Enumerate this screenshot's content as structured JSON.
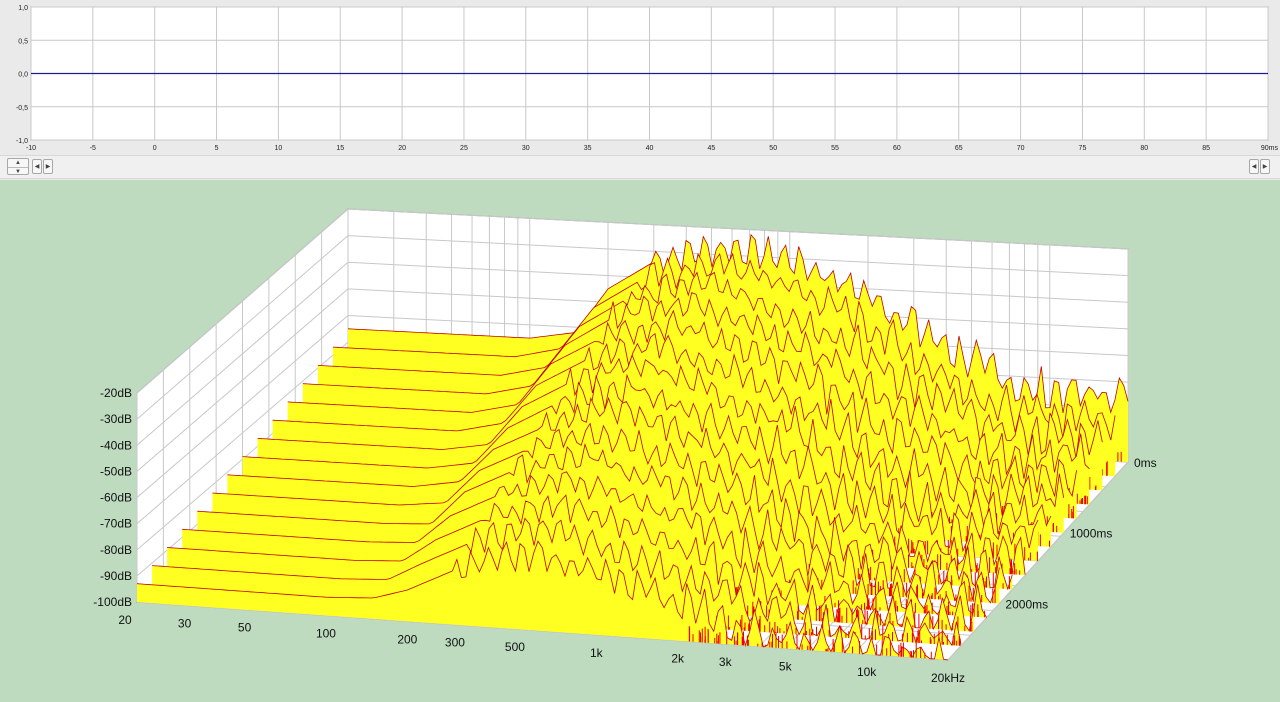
{
  "chart_data": [
    {
      "type": "line",
      "xlim": [
        -10,
        90
      ],
      "ylim": [
        -1.0,
        1.0
      ],
      "x_ticks": [
        "-10",
        "-5",
        "0",
        "5",
        "10",
        "15",
        "20",
        "25",
        "30",
        "35",
        "40",
        "45",
        "50",
        "55",
        "60",
        "65",
        "70",
        "75",
        "80",
        "85",
        "90ms"
      ],
      "y_ticks": [
        "1,0",
        "0,5",
        "0,0",
        "-0,5",
        "-1,0"
      ],
      "series": [
        {
          "x": [
            -10,
            0,
            10,
            20,
            30,
            40,
            50,
            60,
            70,
            80,
            90
          ],
          "values": [
            0,
            0,
            0,
            0,
            0,
            0,
            0,
            0,
            0,
            0,
            0
          ]
        }
      ],
      "colors": {
        "line": "#1a1aa0",
        "grid": "#c8c8c8",
        "plot_bg": "#ffffff"
      }
    },
    {
      "type": "area",
      "subtype": "waterfall",
      "z_tick_labels": [
        "-20dB",
        "-30dB",
        "-40dB",
        "-50dB",
        "-60dB",
        "-70dB",
        "-80dB",
        "-90dB",
        "-100dB"
      ],
      "freq_tick_labels": [
        "20",
        "30",
        "50",
        "100",
        "200",
        "300",
        "500",
        "1k",
        "2k",
        "3k",
        "5k",
        "10k",
        "20kHz"
      ],
      "time_tick_labels": [
        "0ms",
        "1000ms",
        "2000ms"
      ],
      "zlim": [
        -100,
        -20
      ],
      "xlim_hz": [
        20,
        20000
      ],
      "time_ms": [
        0,
        200,
        400,
        600,
        800,
        1000,
        1200,
        1400,
        1600,
        1800,
        2000,
        2200,
        2400,
        2600,
        2800
      ],
      "freqs_hz": [
        20,
        100,
        150,
        200,
        300,
        400,
        600,
        1000,
        2000,
        4000,
        8000
      ],
      "slices_db": [
        [
          -65,
          -65,
          -62,
          -45,
          -34,
          -30,
          -27,
          -30,
          -42,
          -60,
          -75
        ],
        [
          -67,
          -67,
          -63,
          -47,
          -36,
          -32,
          -28,
          -33,
          -45,
          -63,
          -78
        ],
        [
          -69,
          -69,
          -65,
          -49,
          -38,
          -34,
          -30,
          -36,
          -48,
          -66,
          -80
        ],
        [
          -71,
          -71,
          -67,
          -51,
          -40,
          -36,
          -32,
          -39,
          -51,
          -69,
          -82
        ],
        [
          -73,
          -73,
          -69,
          -53,
          -43,
          -38,
          -35,
          -42,
          -54,
          -72,
          -84
        ],
        [
          -75,
          -75,
          -71,
          -56,
          -46,
          -41,
          -38,
          -45,
          -57,
          -75,
          -86
        ],
        [
          -77,
          -77,
          -74,
          -59,
          -49,
          -44,
          -41,
          -48,
          -60,
          -78,
          -88
        ],
        [
          -79,
          -79,
          -76,
          -62,
          -52,
          -47,
          -44,
          -51,
          -63,
          -80,
          -90
        ],
        [
          -81,
          -81,
          -78,
          -65,
          -56,
          -50,
          -47,
          -54,
          -66,
          -83,
          -92
        ],
        [
          -83,
          -83,
          -81,
          -68,
          -59,
          -54,
          -51,
          -58,
          -69,
          -85,
          -93
        ],
        [
          -85,
          -85,
          -84,
          -71,
          -62,
          -57,
          -54,
          -61,
          -72,
          -87,
          -94
        ],
        [
          -87,
          -87,
          -86,
          -75,
          -66,
          -61,
          -58,
          -64,
          -75,
          -89,
          -95
        ],
        [
          -89,
          -89,
          -88,
          -79,
          -70,
          -65,
          -62,
          -68,
          -78,
          -91,
          -96
        ],
        [
          -91,
          -91,
          -90,
          -83,
          -74,
          -70,
          -66,
          -72,
          -81,
          -93,
          -97
        ],
        [
          -93,
          -93,
          -92,
          -88,
          -79,
          -75,
          -71,
          -76,
          -85,
          -95,
          -98
        ]
      ],
      "colors": {
        "fill": "#ffff22",
        "line": "#c00000",
        "spike": "#ee0000",
        "grid": "#c8c8c8",
        "wall": "#ffffff"
      }
    }
  ]
}
